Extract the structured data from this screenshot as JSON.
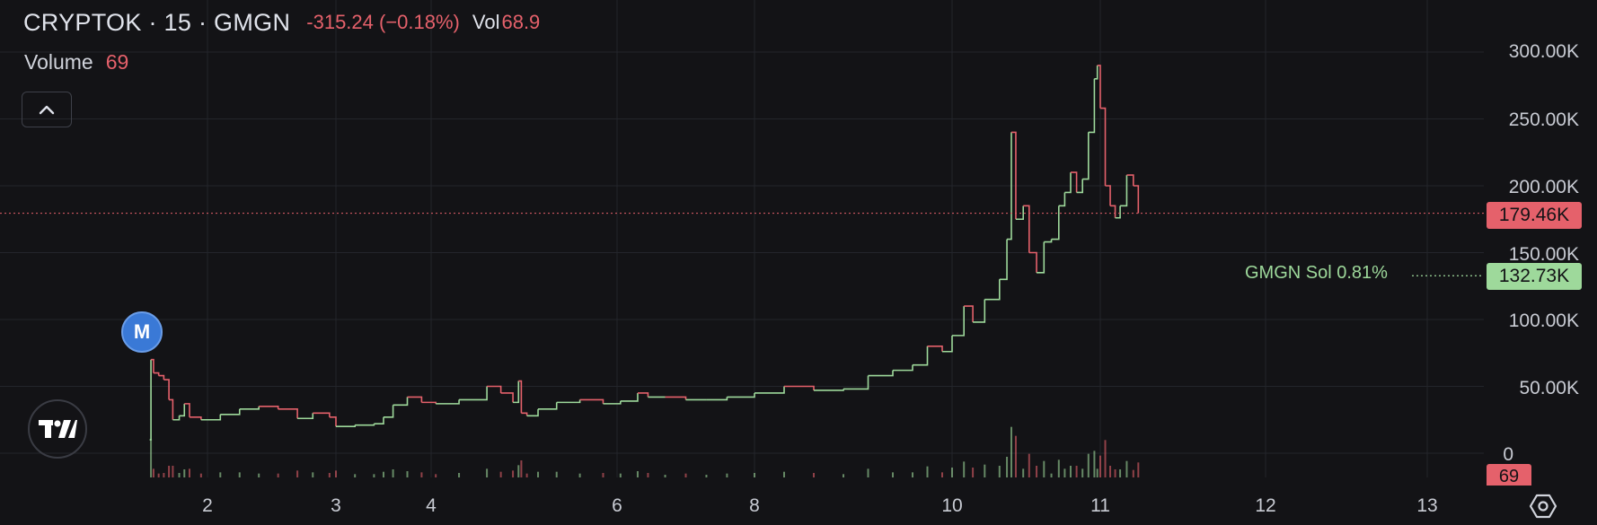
{
  "header": {
    "symbol": "CRYPTOK · 15 · GMGN",
    "change": "-315.24 (−0.18%)",
    "volume_label": "Vol",
    "volume_value": "68.9"
  },
  "volume_indicator": {
    "label": "Volume",
    "value": "69"
  },
  "marker": {
    "label": "M",
    "color": "#3a79d6"
  },
  "price_axis": {
    "ticks": [
      "300.00K",
      "250.00K",
      "200.00K",
      "150.00K",
      "100.00K",
      "50.00K",
      "0"
    ],
    "last_price_tag": "179.46K",
    "gmgn_label": "GMGN Sol 0.81%",
    "gmgn_tag": "132.73K",
    "volume_tag": "69"
  },
  "time_axis": {
    "ticks": [
      "2",
      "3",
      "4",
      "6",
      "8",
      "10",
      "11",
      "12",
      "13"
    ]
  },
  "colors": {
    "up": "#9ed99b",
    "down": "#e5616b",
    "background": "#131316",
    "grid": "#23252b"
  },
  "icons": {
    "collapse": "chevron-up-icon",
    "logo": "tradingview-logo-icon",
    "settings": "hexagon-settings-icon"
  },
  "chart_data": {
    "type": "line",
    "ylim": [
      0,
      300000
    ],
    "series": [
      {
        "values": [
          [
            1.55,
            10000
          ],
          [
            1.56,
            70000
          ],
          [
            1.58,
            60000
          ],
          [
            1.62,
            58000
          ],
          [
            1.66,
            55000
          ],
          [
            1.7,
            40000
          ],
          [
            1.73,
            25000
          ],
          [
            1.78,
            28000
          ],
          [
            1.82,
            37000
          ],
          [
            1.86,
            27000
          ],
          [
            1.95,
            25000
          ],
          [
            2.1,
            29000
          ],
          [
            2.25,
            33000
          ],
          [
            2.4,
            35000
          ],
          [
            2.55,
            33000
          ],
          [
            2.7,
            26000
          ],
          [
            2.82,
            30000
          ],
          [
            2.95,
            27000
          ],
          [
            3.0,
            20000
          ],
          [
            3.2,
            21000
          ],
          [
            3.4,
            22000
          ],
          [
            3.5,
            27000
          ],
          [
            3.6,
            36000
          ],
          [
            3.75,
            42000
          ],
          [
            3.9,
            38000
          ],
          [
            4.05,
            37000
          ],
          [
            4.3,
            40000
          ],
          [
            4.6,
            50000
          ],
          [
            4.75,
            45000
          ],
          [
            4.88,
            38000
          ],
          [
            4.94,
            54000
          ],
          [
            4.97,
            30000
          ],
          [
            5.03,
            28000
          ],
          [
            5.15,
            33000
          ],
          [
            5.35,
            38000
          ],
          [
            5.6,
            40000
          ],
          [
            5.85,
            37000
          ],
          [
            6.05,
            39000
          ],
          [
            6.3,
            45000
          ],
          [
            6.45,
            42000
          ],
          [
            6.7,
            42000
          ],
          [
            7.0,
            40000
          ],
          [
            7.3,
            40000
          ],
          [
            7.6,
            42000
          ],
          [
            8.0,
            45000
          ],
          [
            8.3,
            50000
          ],
          [
            8.6,
            47000
          ],
          [
            8.9,
            48000
          ],
          [
            9.15,
            58000
          ],
          [
            9.4,
            62000
          ],
          [
            9.6,
            66000
          ],
          [
            9.75,
            80000
          ],
          [
            9.9,
            76000
          ],
          [
            10.0,
            88000
          ],
          [
            10.08,
            110000
          ],
          [
            10.14,
            98000
          ],
          [
            10.22,
            115000
          ],
          [
            10.32,
            130000
          ],
          [
            10.37,
            160000
          ],
          [
            10.4,
            240000
          ],
          [
            10.43,
            175000
          ],
          [
            10.48,
            185000
          ],
          [
            10.52,
            150000
          ],
          [
            10.57,
            135000
          ],
          [
            10.62,
            158000
          ],
          [
            10.67,
            160000
          ],
          [
            10.72,
            185000
          ],
          [
            10.76,
            195000
          ],
          [
            10.8,
            210000
          ],
          [
            10.84,
            195000
          ],
          [
            10.88,
            205000
          ],
          [
            10.92,
            240000
          ],
          [
            10.96,
            280000
          ],
          [
            10.98,
            290000
          ],
          [
            11.0,
            258000
          ],
          [
            11.03,
            200000
          ],
          [
            11.06,
            185000
          ],
          [
            11.09,
            176000
          ],
          [
            11.12,
            185000
          ],
          [
            11.16,
            208000
          ],
          [
            11.2,
            200000
          ],
          [
            11.23,
            179460
          ]
        ]
      }
    ]
  }
}
